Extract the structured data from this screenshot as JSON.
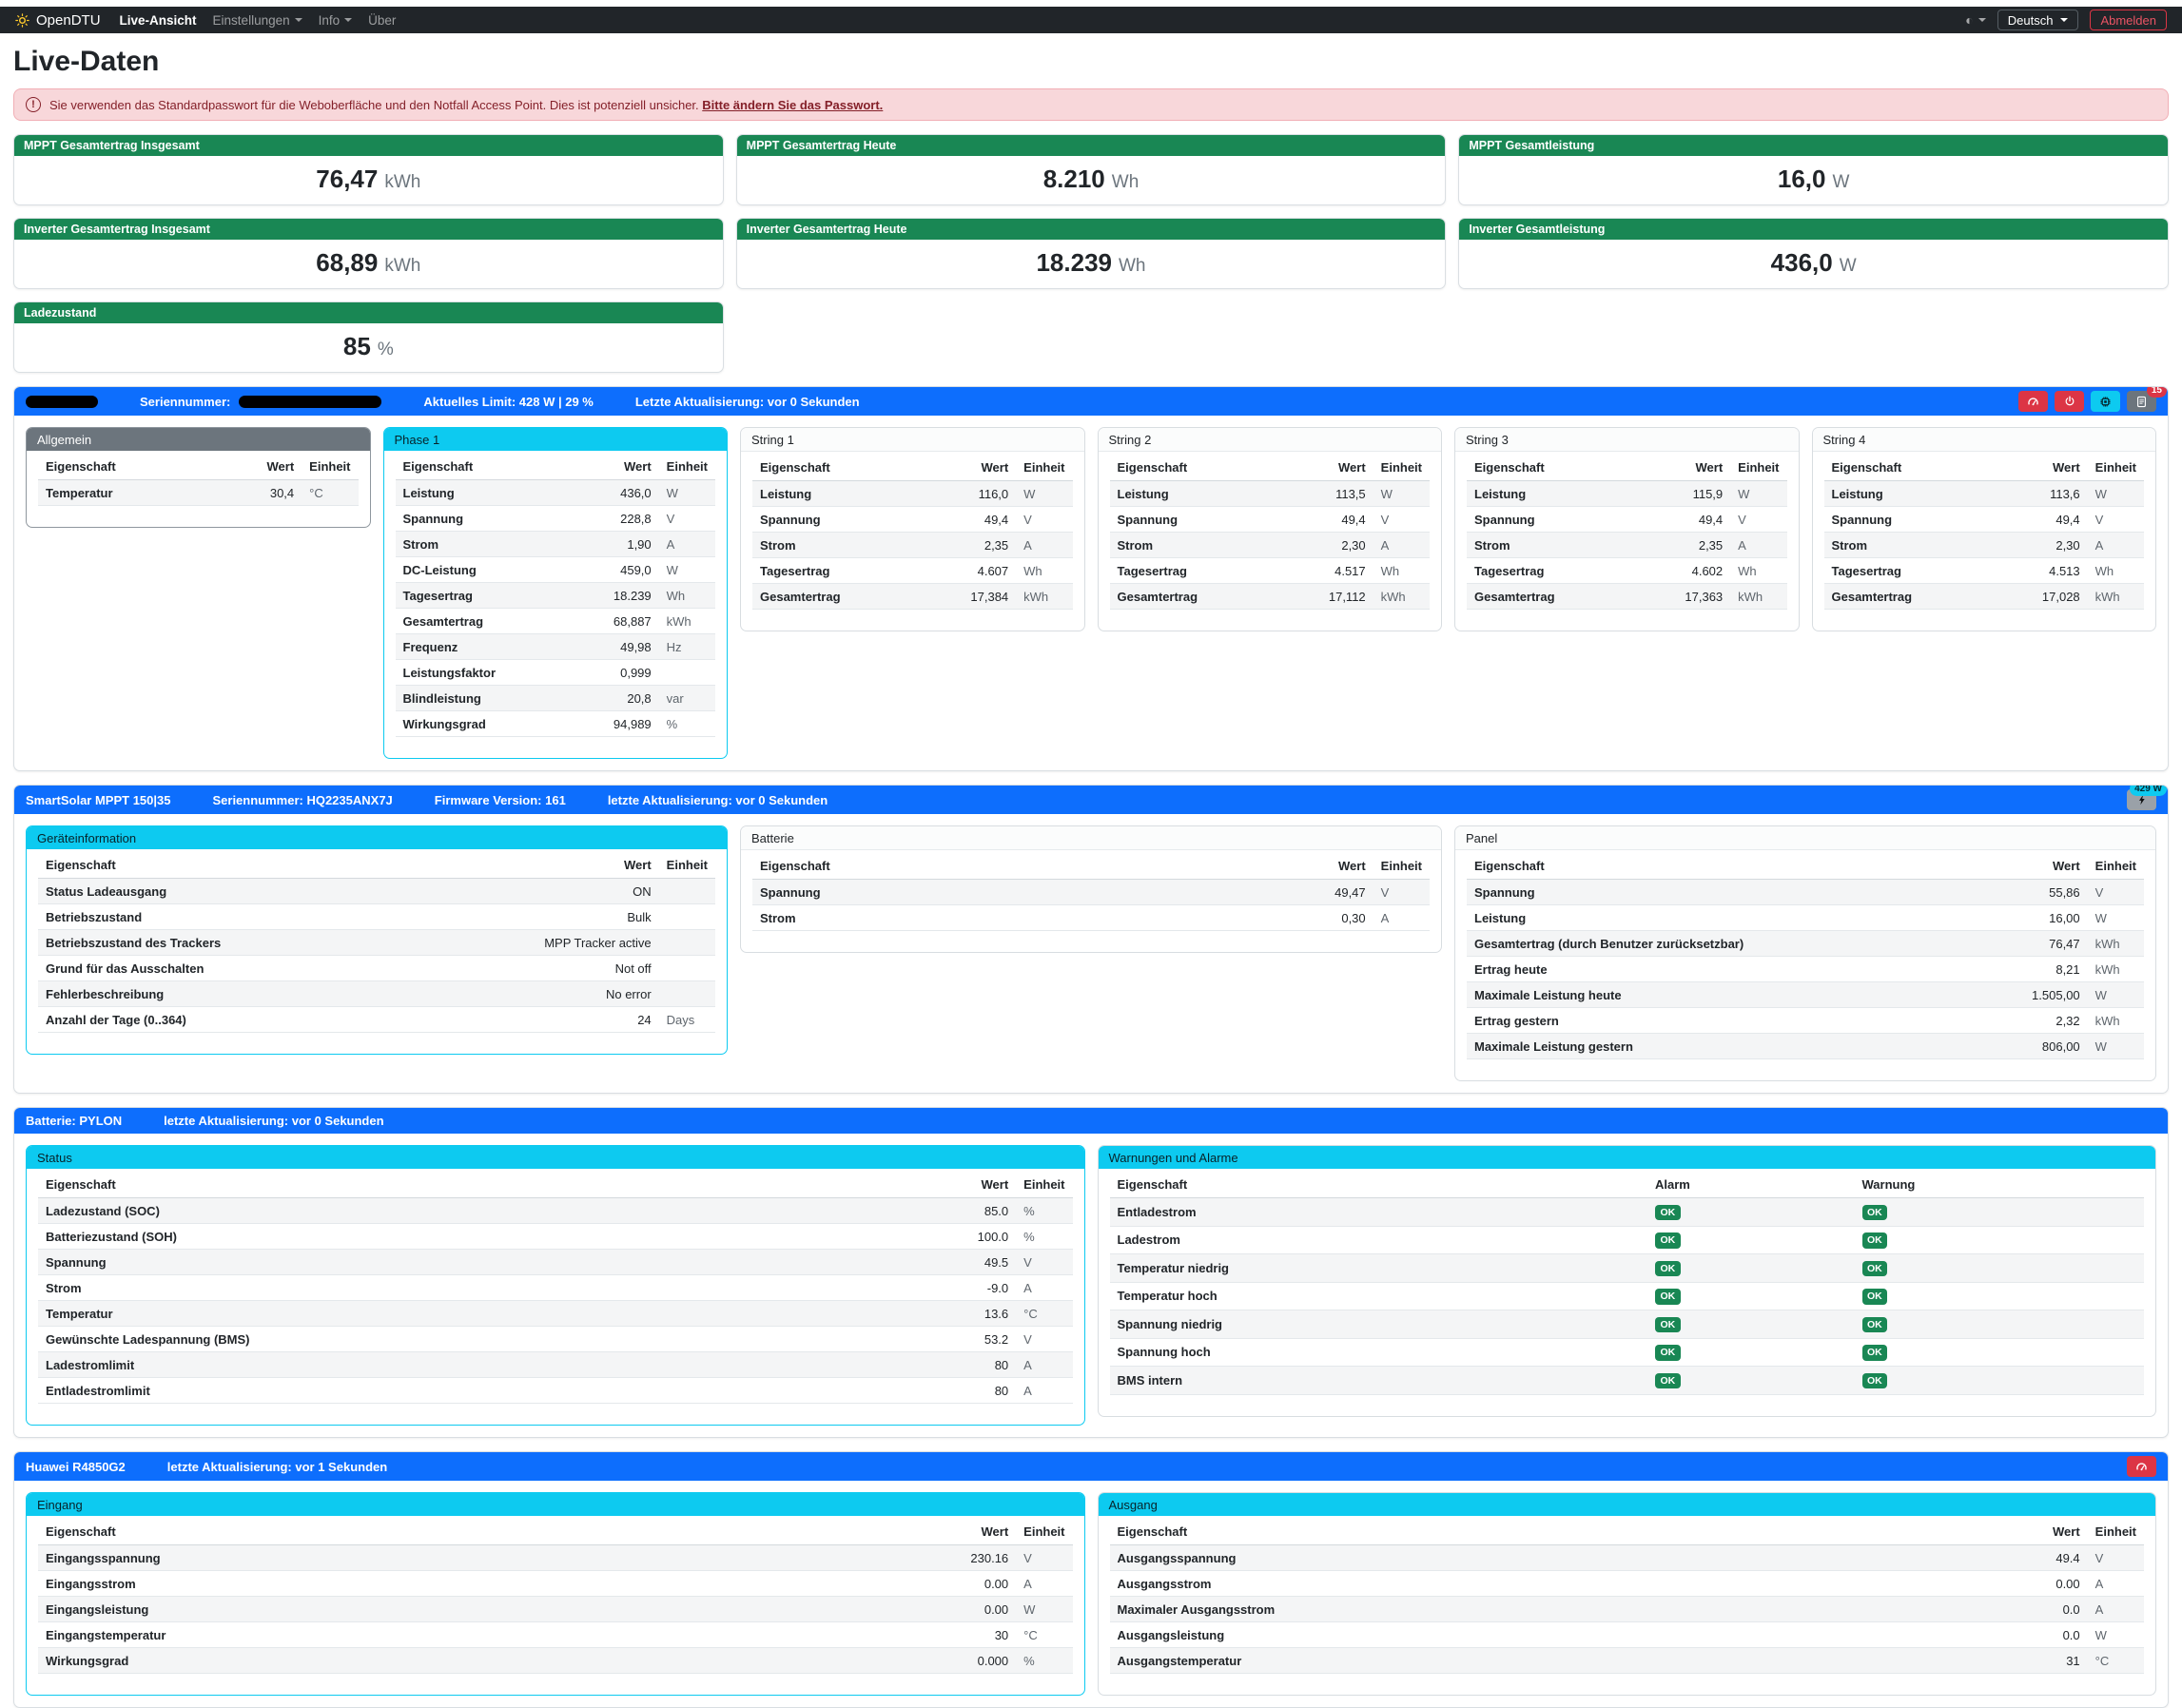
{
  "navbar": {
    "brand": "OpenDTU",
    "items": [
      {
        "label": "Live-Ansicht",
        "active": true,
        "caret": false
      },
      {
        "label": "Einstellungen",
        "active": false,
        "caret": true
      },
      {
        "label": "Info",
        "active": false,
        "caret": true
      },
      {
        "label": "Über",
        "active": false,
        "caret": false
      }
    ],
    "theme_icon": "◐",
    "language_label": "Deutsch",
    "logout_label": "Abmelden"
  },
  "page_title": "Live-Daten",
  "alert": {
    "text": "Sie verwenden das Standardpasswort für die Weboberfläche und den Notfall Access Point. Dies ist potenziell unsicher.",
    "link": "Bitte ändern Sie das Passwort."
  },
  "colors": {
    "primary": "#0d6efd",
    "success": "#198754",
    "info": "#0dcaf0",
    "danger": "#dc3545",
    "secondary": "#6c757d"
  },
  "table_headers": {
    "property": "Eigenschaft",
    "value": "Wert",
    "unit": "Einheit",
    "alarm": "Alarm",
    "warning": "Warnung"
  },
  "stat_cards": [
    {
      "title": "MPPT Gesamtertrag Insgesamt",
      "value": "76,47",
      "unit": "kWh"
    },
    {
      "title": "MPPT Gesamtertrag Heute",
      "value": "8.210",
      "unit": "Wh"
    },
    {
      "title": "MPPT Gesamtleistung",
      "value": "16,0",
      "unit": "W"
    },
    {
      "title": "Inverter Gesamtertrag Insgesamt",
      "value": "68,89",
      "unit": "kWh"
    },
    {
      "title": "Inverter Gesamtertrag Heute",
      "value": "18.239",
      "unit": "Wh"
    },
    {
      "title": "Inverter Gesamtleistung",
      "value": "436,0",
      "unit": "W"
    },
    {
      "title": "Ladezustand",
      "value": "85",
      "unit": "%"
    }
  ],
  "sections": [
    {
      "name": "inverter",
      "card_span": 2,
      "bar": {
        "fields": [
          {
            "redacted": "name"
          },
          {
            "label": "Seriennummer:",
            "redacted": "serial"
          },
          {
            "label": "Aktuelles Limit: 428 W | 29 %"
          },
          {
            "label": "Letzte Aktualisierung: vor 0 Sekunden"
          }
        ],
        "buttons": [
          {
            "name": "limit-settings-button",
            "icon": "speedometer",
            "style": "danger"
          },
          {
            "name": "power-toggle-button",
            "icon": "power",
            "style": "danger"
          },
          {
            "name": "device-info-button",
            "icon": "chip",
            "style": "info"
          },
          {
            "name": "event-log-button",
            "icon": "journal",
            "style": "secondary",
            "badge": "15",
            "badge_style": "danger"
          }
        ]
      },
      "cards": [
        {
          "title": "Allgemein",
          "header": "secondary",
          "border": "secondary",
          "type": "kv",
          "rows": [
            [
              "Temperatur",
              "30,4",
              "°C"
            ]
          ]
        },
        {
          "title": "Phase 1",
          "header": "info",
          "border": "info",
          "type": "kv",
          "rows": [
            [
              "Leistung",
              "436,0",
              "W"
            ],
            [
              "Spannung",
              "228,8",
              "V"
            ],
            [
              "Strom",
              "1,90",
              "A"
            ],
            [
              "DC-Leistung",
              "459,0",
              "W"
            ],
            [
              "Tagesertrag",
              "18.239",
              "Wh"
            ],
            [
              "Gesamtertrag",
              "68,887",
              "kWh"
            ],
            [
              "Frequenz",
              "49,98",
              "Hz"
            ],
            [
              "Leistungsfaktor",
              "0,999",
              ""
            ],
            [
              "Blindleistung",
              "20,8",
              "var"
            ],
            [
              "Wirkungsgrad",
              "94,989",
              "%"
            ]
          ]
        },
        {
          "title": "String 1",
          "header": "default",
          "border": "default",
          "type": "kv",
          "rows": [
            [
              "Leistung",
              "116,0",
              "W"
            ],
            [
              "Spannung",
              "49,4",
              "V"
            ],
            [
              "Strom",
              "2,35",
              "A"
            ],
            [
              "Tagesertrag",
              "4.607",
              "Wh"
            ],
            [
              "Gesamtertrag",
              "17,384",
              "kWh"
            ]
          ]
        },
        {
          "title": "String 2",
          "header": "default",
          "border": "default",
          "type": "kv",
          "rows": [
            [
              "Leistung",
              "113,5",
              "W"
            ],
            [
              "Spannung",
              "49,4",
              "V"
            ],
            [
              "Strom",
              "2,30",
              "A"
            ],
            [
              "Tagesertrag",
              "4.517",
              "Wh"
            ],
            [
              "Gesamtertrag",
              "17,112",
              "kWh"
            ]
          ]
        },
        {
          "title": "String 3",
          "header": "default",
          "border": "default",
          "type": "kv",
          "rows": [
            [
              "Leistung",
              "115,9",
              "W"
            ],
            [
              "Spannung",
              "49,4",
              "V"
            ],
            [
              "Strom",
              "2,35",
              "A"
            ],
            [
              "Tagesertrag",
              "4.602",
              "Wh"
            ],
            [
              "Gesamtertrag",
              "17,363",
              "kWh"
            ]
          ]
        },
        {
          "title": "String 4",
          "header": "default",
          "border": "default",
          "type": "kv",
          "rows": [
            [
              "Leistung",
              "113,6",
              "W"
            ],
            [
              "Spannung",
              "49,4",
              "V"
            ],
            [
              "Strom",
              "2,30",
              "A"
            ],
            [
              "Tagesertrag",
              "4.513",
              "Wh"
            ],
            [
              "Gesamtertrag",
              "17,028",
              "kWh"
            ]
          ]
        }
      ]
    },
    {
      "name": "victron",
      "card_span": 4,
      "bar": {
        "fields": [
          {
            "label": "SmartSolar MPPT 150|35"
          },
          {
            "label": "Seriennummer: HQ2235ANX7J"
          },
          {
            "label": "Firmware Version: 161"
          },
          {
            "label": "letzte Aktualisierung: vor 0 Sekunden"
          }
        ],
        "buttons": [
          {
            "name": "charge-power-button",
            "icon": "lightning",
            "style": "light",
            "badge": "429 W",
            "badge_style": "info"
          }
        ]
      },
      "cards": [
        {
          "title": "Geräteinformation",
          "header": "info",
          "border": "info",
          "type": "kv",
          "rows": [
            [
              "Status Ladeausgang",
              "ON",
              ""
            ],
            [
              "Betriebszustand",
              "Bulk",
              ""
            ],
            [
              "Betriebszustand des Trackers",
              "MPP Tracker active",
              ""
            ],
            [
              "Grund für das Ausschalten",
              "Not off",
              ""
            ],
            [
              "Fehlerbeschreibung",
              "No error",
              ""
            ],
            [
              "Anzahl der Tage (0..364)",
              "24",
              "Days"
            ]
          ]
        },
        {
          "title": "Batterie",
          "header": "default",
          "border": "default",
          "type": "kv",
          "rows": [
            [
              "Spannung",
              "49,47",
              "V"
            ],
            [
              "Strom",
              "0,30",
              "A"
            ]
          ]
        },
        {
          "title": "Panel",
          "header": "default",
          "border": "default",
          "type": "kv",
          "rows": [
            [
              "Spannung",
              "55,86",
              "V"
            ],
            [
              "Leistung",
              "16,00",
              "W"
            ],
            [
              "Gesamtertrag (durch Benutzer zurücksetzbar)",
              "76,47",
              "kWh"
            ],
            [
              "Ertrag heute",
              "8,21",
              "kWh"
            ],
            [
              "Maximale Leistung heute",
              "1.505,00",
              "W"
            ],
            [
              "Ertrag gestern",
              "2,32",
              "kWh"
            ],
            [
              "Maximale Leistung gestern",
              "806,00",
              "W"
            ]
          ]
        }
      ]
    },
    {
      "name": "battery",
      "card_span": 6,
      "bar": {
        "fields": [
          {
            "label": "Batterie: PYLON"
          },
          {
            "label": "letzte Aktualisierung: vor 0 Sekunden"
          }
        ],
        "buttons": []
      },
      "cards": [
        {
          "title": "Status",
          "header": "info",
          "border": "info",
          "type": "kv",
          "rows": [
            [
              "Ladezustand (SOC)",
              "85.0",
              "%"
            ],
            [
              "Batteriezustand (SOH)",
              "100.0",
              "%"
            ],
            [
              "Spannung",
              "49.5",
              "V"
            ],
            [
              "Strom",
              "-9.0",
              "A"
            ],
            [
              "Temperatur",
              "13.6",
              "°C"
            ],
            [
              "Gewünschte Ladespannung (BMS)",
              "53.2",
              "V"
            ],
            [
              "Ladestromlimit",
              "80",
              "A"
            ],
            [
              "Entladestromlimit",
              "80",
              "A"
            ]
          ]
        },
        {
          "title": "Warnungen und Alarme",
          "header": "info",
          "border": "default",
          "type": "alerts",
          "rows": [
            [
              "Entladestrom",
              "OK",
              "OK"
            ],
            [
              "Ladestrom",
              "OK",
              "OK"
            ],
            [
              "Temperatur niedrig",
              "OK",
              "OK"
            ],
            [
              "Temperatur hoch",
              "OK",
              "OK"
            ],
            [
              "Spannung niedrig",
              "OK",
              "OK"
            ],
            [
              "Spannung hoch",
              "OK",
              "OK"
            ],
            [
              "BMS intern",
              "OK",
              "OK"
            ]
          ]
        }
      ]
    },
    {
      "name": "huawei",
      "card_span": 6,
      "bar": {
        "fields": [
          {
            "label": "Huawei R4850G2"
          },
          {
            "label": "letzte Aktualisierung: vor 1 Sekunden"
          }
        ],
        "buttons": [
          {
            "name": "limit-settings-button",
            "icon": "speedometer",
            "style": "danger"
          }
        ]
      },
      "cards": [
        {
          "title": "Eingang",
          "header": "info",
          "border": "info",
          "type": "kv",
          "rows": [
            [
              "Eingangsspannung",
              "230.16",
              "V"
            ],
            [
              "Eingangsstrom",
              "0.00",
              "A"
            ],
            [
              "Eingangsleistung",
              "0.00",
              "W"
            ],
            [
              "Eingangstemperatur",
              "30",
              "°C"
            ],
            [
              "Wirkungsgrad",
              "0.000",
              "%"
            ]
          ]
        },
        {
          "title": "Ausgang",
          "header": "info",
          "border": "default",
          "type": "kv",
          "rows": [
            [
              "Ausgangsspannung",
              "49.4",
              "V"
            ],
            [
              "Ausgangsstrom",
              "0.00",
              "A"
            ],
            [
              "Maximaler Ausgangsstrom",
              "0.0",
              "A"
            ],
            [
              "Ausgangsleistung",
              "0.0",
              "W"
            ],
            [
              "Ausgangstemperatur",
              "31",
              "°C"
            ]
          ]
        }
      ]
    }
  ]
}
